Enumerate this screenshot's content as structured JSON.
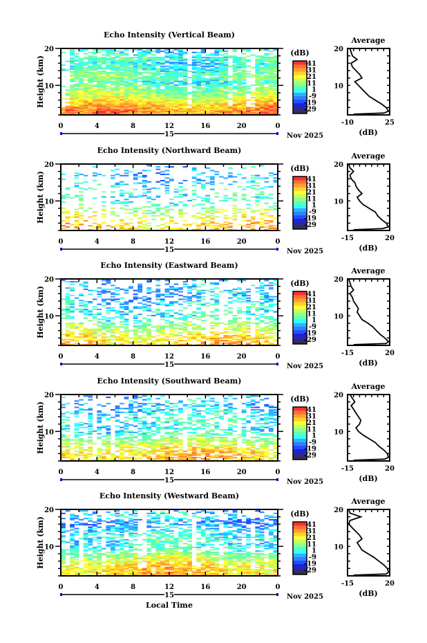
{
  "figure": {
    "date_label": "Nov 2025",
    "day_label": "15",
    "xlabel": "Local Time",
    "colormap": [
      "#303050",
      "#2a2a90",
      "#2020e0",
      "#2050ff",
      "#3080ff",
      "#30b0ff",
      "#30ffff",
      "#60ffb0",
      "#90ff90",
      "#c0ff60",
      "#ffff30",
      "#ffd030",
      "#ffa030",
      "#ff7030",
      "#ff3030"
    ]
  },
  "chart_data": [
    {
      "type": "heatmap",
      "title": "Echo Intensity (Vertical Beam)",
      "ylabel": "Height (km)",
      "yticks": [
        "20",
        "10"
      ],
      "xticks": [
        "0",
        "4",
        "8",
        "12",
        "16",
        "20",
        "0"
      ],
      "xlim": [
        0,
        24
      ],
      "ylim": [
        2,
        20
      ],
      "colorbar_label": "(dB)",
      "colorbar_ticks": [
        "41",
        "31",
        "21",
        "11",
        "1",
        "-9",
        "-19",
        "-29"
      ],
      "clim": [
        -29,
        46
      ],
      "coverage": 0.85,
      "average": {
        "type": "line",
        "title": "Average",
        "xlabel": "(dB)",
        "xlim": [
          -10,
          25
        ],
        "xtick_labels": [
          "-10",
          "25"
        ],
        "yticks": [
          "20",
          "10"
        ],
        "heights": [
          20,
          19,
          18,
          17,
          16,
          15,
          14,
          13,
          12,
          11,
          10,
          9,
          8,
          7,
          6,
          5,
          4,
          3,
          2.5,
          2.2
        ],
        "values": [
          -8,
          -7,
          -6,
          -2,
          -7,
          -6,
          -3,
          0,
          2,
          -4,
          -1,
          2,
          5,
          8,
          13,
          18,
          22,
          24,
          20,
          -5
        ]
      }
    },
    {
      "type": "heatmap",
      "title": "Echo Intensity (Northward Beam)",
      "ylabel": "Height (km)",
      "yticks": [
        "20",
        "10"
      ],
      "xticks": [
        "0",
        "4",
        "8",
        "12",
        "16",
        "20",
        "0"
      ],
      "xlim": [
        0,
        24
      ],
      "ylim": [
        2,
        20
      ],
      "colorbar_label": "(dB)",
      "colorbar_ticks": [
        "41",
        "31",
        "21",
        "11",
        "1",
        "-9",
        "-19",
        "-29"
      ],
      "clim": [
        -29,
        46
      ],
      "coverage": 0.22,
      "average": {
        "type": "line",
        "title": "Average",
        "xlabel": "(dB)",
        "xlim": [
          -15,
          20
        ],
        "xtick_labels": [
          "-15",
          "20"
        ],
        "yticks": [
          "20",
          "10"
        ],
        "heights": [
          20,
          19,
          18,
          17,
          16,
          15,
          14,
          13,
          12,
          11,
          10,
          9,
          8,
          7,
          6,
          5,
          4,
          3,
          2.5,
          2.2
        ],
        "values": [
          -14,
          -13,
          -10,
          -13,
          -12,
          -9,
          -8,
          -6,
          -3,
          -7,
          -5,
          -2,
          3,
          8,
          10,
          13,
          17,
          19,
          14,
          -10
        ]
      }
    },
    {
      "type": "heatmap",
      "title": "Echo Intensity (Eastward Beam)",
      "ylabel": "Height (km)",
      "yticks": [
        "20",
        "10"
      ],
      "xticks": [
        "0",
        "4",
        "8",
        "12",
        "16",
        "20",
        "0"
      ],
      "xlim": [
        0,
        24
      ],
      "ylim": [
        2,
        20
      ],
      "colorbar_label": "(dB)",
      "colorbar_ticks": [
        "41",
        "31",
        "21",
        "11",
        "1",
        "-9",
        "-19",
        "-29"
      ],
      "clim": [
        -29,
        46
      ],
      "coverage": 0.4,
      "average": {
        "type": "line",
        "title": "Average",
        "xlabel": "(dB)",
        "xlim": [
          -15,
          20
        ],
        "xtick_labels": [
          "-15",
          "20"
        ],
        "yticks": [
          "20",
          "10"
        ],
        "heights": [
          20,
          19,
          18,
          17,
          16,
          15,
          14,
          13,
          12,
          11,
          10,
          9,
          8,
          7,
          6,
          5,
          4,
          3,
          2.5,
          2.2
        ],
        "values": [
          -14,
          -13,
          -12,
          -10,
          -13,
          -11,
          -10,
          -8,
          -6,
          -7,
          -5,
          -3,
          2,
          6,
          9,
          12,
          16,
          19,
          17,
          -10
        ]
      }
    },
    {
      "type": "heatmap",
      "title": "Echo Intensity (Southward Beam)",
      "ylabel": "Height (km)",
      "yticks": [
        "20",
        "10"
      ],
      "xticks": [
        "0",
        "4",
        "8",
        "12",
        "16",
        "20",
        "0"
      ],
      "xlim": [
        0,
        24
      ],
      "ylim": [
        2,
        20
      ],
      "colorbar_label": "(dB)",
      "colorbar_ticks": [
        "41",
        "31",
        "21",
        "11",
        "1",
        "-9",
        "-19",
        "-29"
      ],
      "clim": [
        -29,
        46
      ],
      "coverage": 0.45,
      "average": {
        "type": "line",
        "title": "Average",
        "xlabel": "(dB)",
        "xlim": [
          -15,
          20
        ],
        "xtick_labels": [
          "-15",
          "20"
        ],
        "yticks": [
          "20",
          "10"
        ],
        "heights": [
          20,
          19,
          18,
          17,
          16,
          15,
          14,
          13,
          12,
          11,
          10,
          9,
          8,
          7,
          6,
          5,
          4,
          3,
          2.5,
          2.2
        ],
        "values": [
          -13,
          -11,
          -9,
          -12,
          -10,
          -8,
          -6,
          -4,
          -5,
          -8,
          -6,
          -2,
          3,
          8,
          11,
          15,
          18,
          19,
          16,
          -10
        ]
      }
    },
    {
      "type": "heatmap",
      "title": "Echo Intensity (Westward Beam)",
      "ylabel": "Height (km)",
      "yticks": [
        "20",
        "10"
      ],
      "xticks": [
        "0",
        "4",
        "8",
        "12",
        "16",
        "20",
        "0"
      ],
      "xlim": [
        0,
        24
      ],
      "ylim": [
        2,
        20
      ],
      "colorbar_label": "(dB)",
      "colorbar_ticks": [
        "41",
        "31",
        "21",
        "11",
        "1",
        "-9",
        "-19",
        "-29"
      ],
      "clim": [
        -29,
        46
      ],
      "coverage": 0.55,
      "average": {
        "type": "line",
        "title": "Average",
        "xlabel": "(dB)",
        "xlim": [
          -15,
          20
        ],
        "xtick_labels": [
          "-15",
          "20"
        ],
        "yticks": [
          "20",
          "10"
        ],
        "heights": [
          20,
          19,
          18,
          17,
          16,
          15,
          14,
          13,
          12,
          11,
          10,
          9,
          8,
          7,
          6,
          5,
          4,
          3,
          2.5,
          2.2
        ],
        "values": [
          -14,
          -13,
          -4,
          -13,
          -14,
          -11,
          -8,
          -5,
          -3,
          -7,
          -5,
          -3,
          2,
          7,
          11,
          15,
          18,
          19,
          17,
          -10
        ]
      }
    }
  ]
}
